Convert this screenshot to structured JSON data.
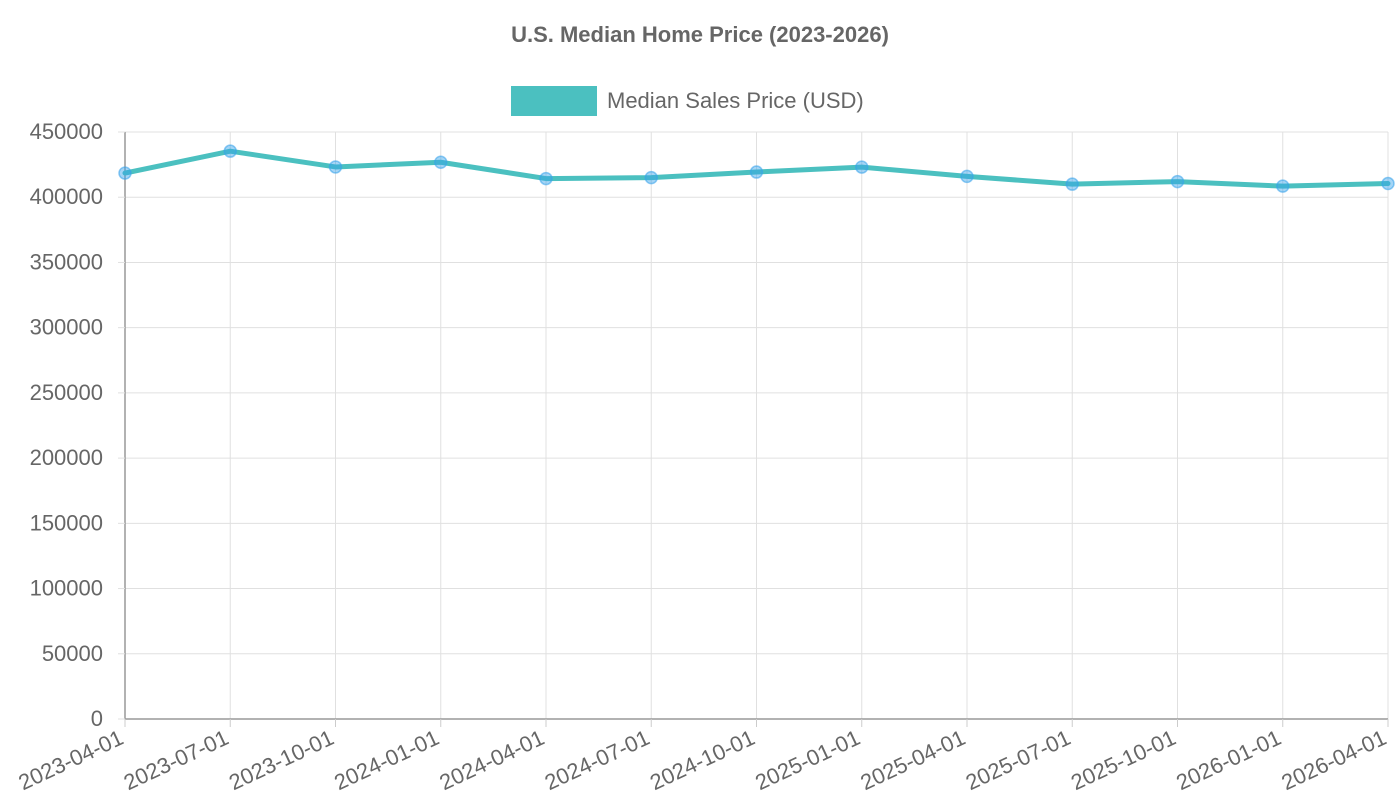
{
  "chart_data": {
    "type": "line",
    "title": "U.S. Median Home Price (2023-2026)",
    "xlabel": "",
    "ylabel": "",
    "x": [
      "2023-04-01",
      "2023-07-01",
      "2023-10-01",
      "2024-01-01",
      "2024-04-01",
      "2024-07-01",
      "2024-10-01",
      "2025-01-01",
      "2025-04-01",
      "2025-07-01",
      "2025-10-01",
      "2026-01-01",
      "2026-04-01"
    ],
    "series": [
      {
        "name": "Median Sales Price (USD)",
        "values": [
          418500,
          435300,
          423200,
          426800,
          414300,
          415000,
          419300,
          423100,
          416000,
          410000,
          412000,
          408500,
          410500
        ],
        "color": "#4bc0c0"
      }
    ],
    "ylim": [
      0,
      450000
    ],
    "yticks": [
      0,
      50000,
      100000,
      150000,
      200000,
      250000,
      300000,
      350000,
      400000,
      450000
    ],
    "grid": true,
    "legend": "top-center"
  }
}
